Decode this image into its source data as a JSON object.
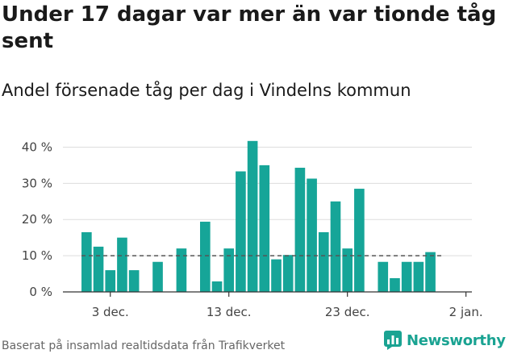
{
  "title": "Under 17 dagar var mer än var tionde tåg sent",
  "subtitle": "Andel försenade tåg per dag i Vindelns kommun",
  "footer": {
    "source": "Baserat på insamlad realtidsdata från Trafikverket",
    "brand": "Newsworthy"
  },
  "colors": {
    "bar": "#16a598",
    "reference_line": "#555555",
    "grid": "#dddddd",
    "brand": "#1aa392"
  },
  "chart_data": {
    "type": "bar",
    "x_unit": "day",
    "x_start": "2019-12-01",
    "x_end": "2020-01-02",
    "x_ticks": [
      {
        "day": "2019-12-03",
        "label": "3 dec."
      },
      {
        "day": "2019-12-13",
        "label": "13 dec."
      },
      {
        "day": "2019-12-23",
        "label": "23 dec."
      },
      {
        "day": "2020-01-02",
        "label": "2 jan."
      }
    ],
    "y_ticks": [
      {
        "value": 0,
        "label": "0 %"
      },
      {
        "value": 10,
        "label": "10 %"
      },
      {
        "value": 20,
        "label": "20 %"
      },
      {
        "value": 30,
        "label": "30 %"
      },
      {
        "value": 40,
        "label": "40 %"
      }
    ],
    "ylim": [
      0,
      45
    ],
    "grid": true,
    "reference_line": 10,
    "bars": [
      {
        "day": "2019-12-01",
        "value": 16.5
      },
      {
        "day": "2019-12-02",
        "value": 12.5
      },
      {
        "day": "2019-12-03",
        "value": 6
      },
      {
        "day": "2019-12-04",
        "value": 15
      },
      {
        "day": "2019-12-05",
        "value": 6
      },
      {
        "day": "2019-12-07",
        "value": 8.3
      },
      {
        "day": "2019-12-09",
        "value": 12
      },
      {
        "day": "2019-12-11",
        "value": 19.4
      },
      {
        "day": "2019-12-12",
        "value": 2.9
      },
      {
        "day": "2019-12-13",
        "value": 12
      },
      {
        "day": "2019-12-14",
        "value": 33.3
      },
      {
        "day": "2019-12-15",
        "value": 41.7
      },
      {
        "day": "2019-12-16",
        "value": 35
      },
      {
        "day": "2019-12-17",
        "value": 9
      },
      {
        "day": "2019-12-18",
        "value": 10.2
      },
      {
        "day": "2019-12-19",
        "value": 34.3
      },
      {
        "day": "2019-12-20",
        "value": 31.3
      },
      {
        "day": "2019-12-21",
        "value": 16.5
      },
      {
        "day": "2019-12-22",
        "value": 25
      },
      {
        "day": "2019-12-23",
        "value": 12
      },
      {
        "day": "2019-12-24",
        "value": 28.5
      },
      {
        "day": "2019-12-26",
        "value": 8.3
      },
      {
        "day": "2019-12-27",
        "value": 3.8
      },
      {
        "day": "2019-12-28",
        "value": 8.3
      },
      {
        "day": "2019-12-29",
        "value": 8.3
      },
      {
        "day": "2019-12-30",
        "value": 11
      }
    ]
  }
}
